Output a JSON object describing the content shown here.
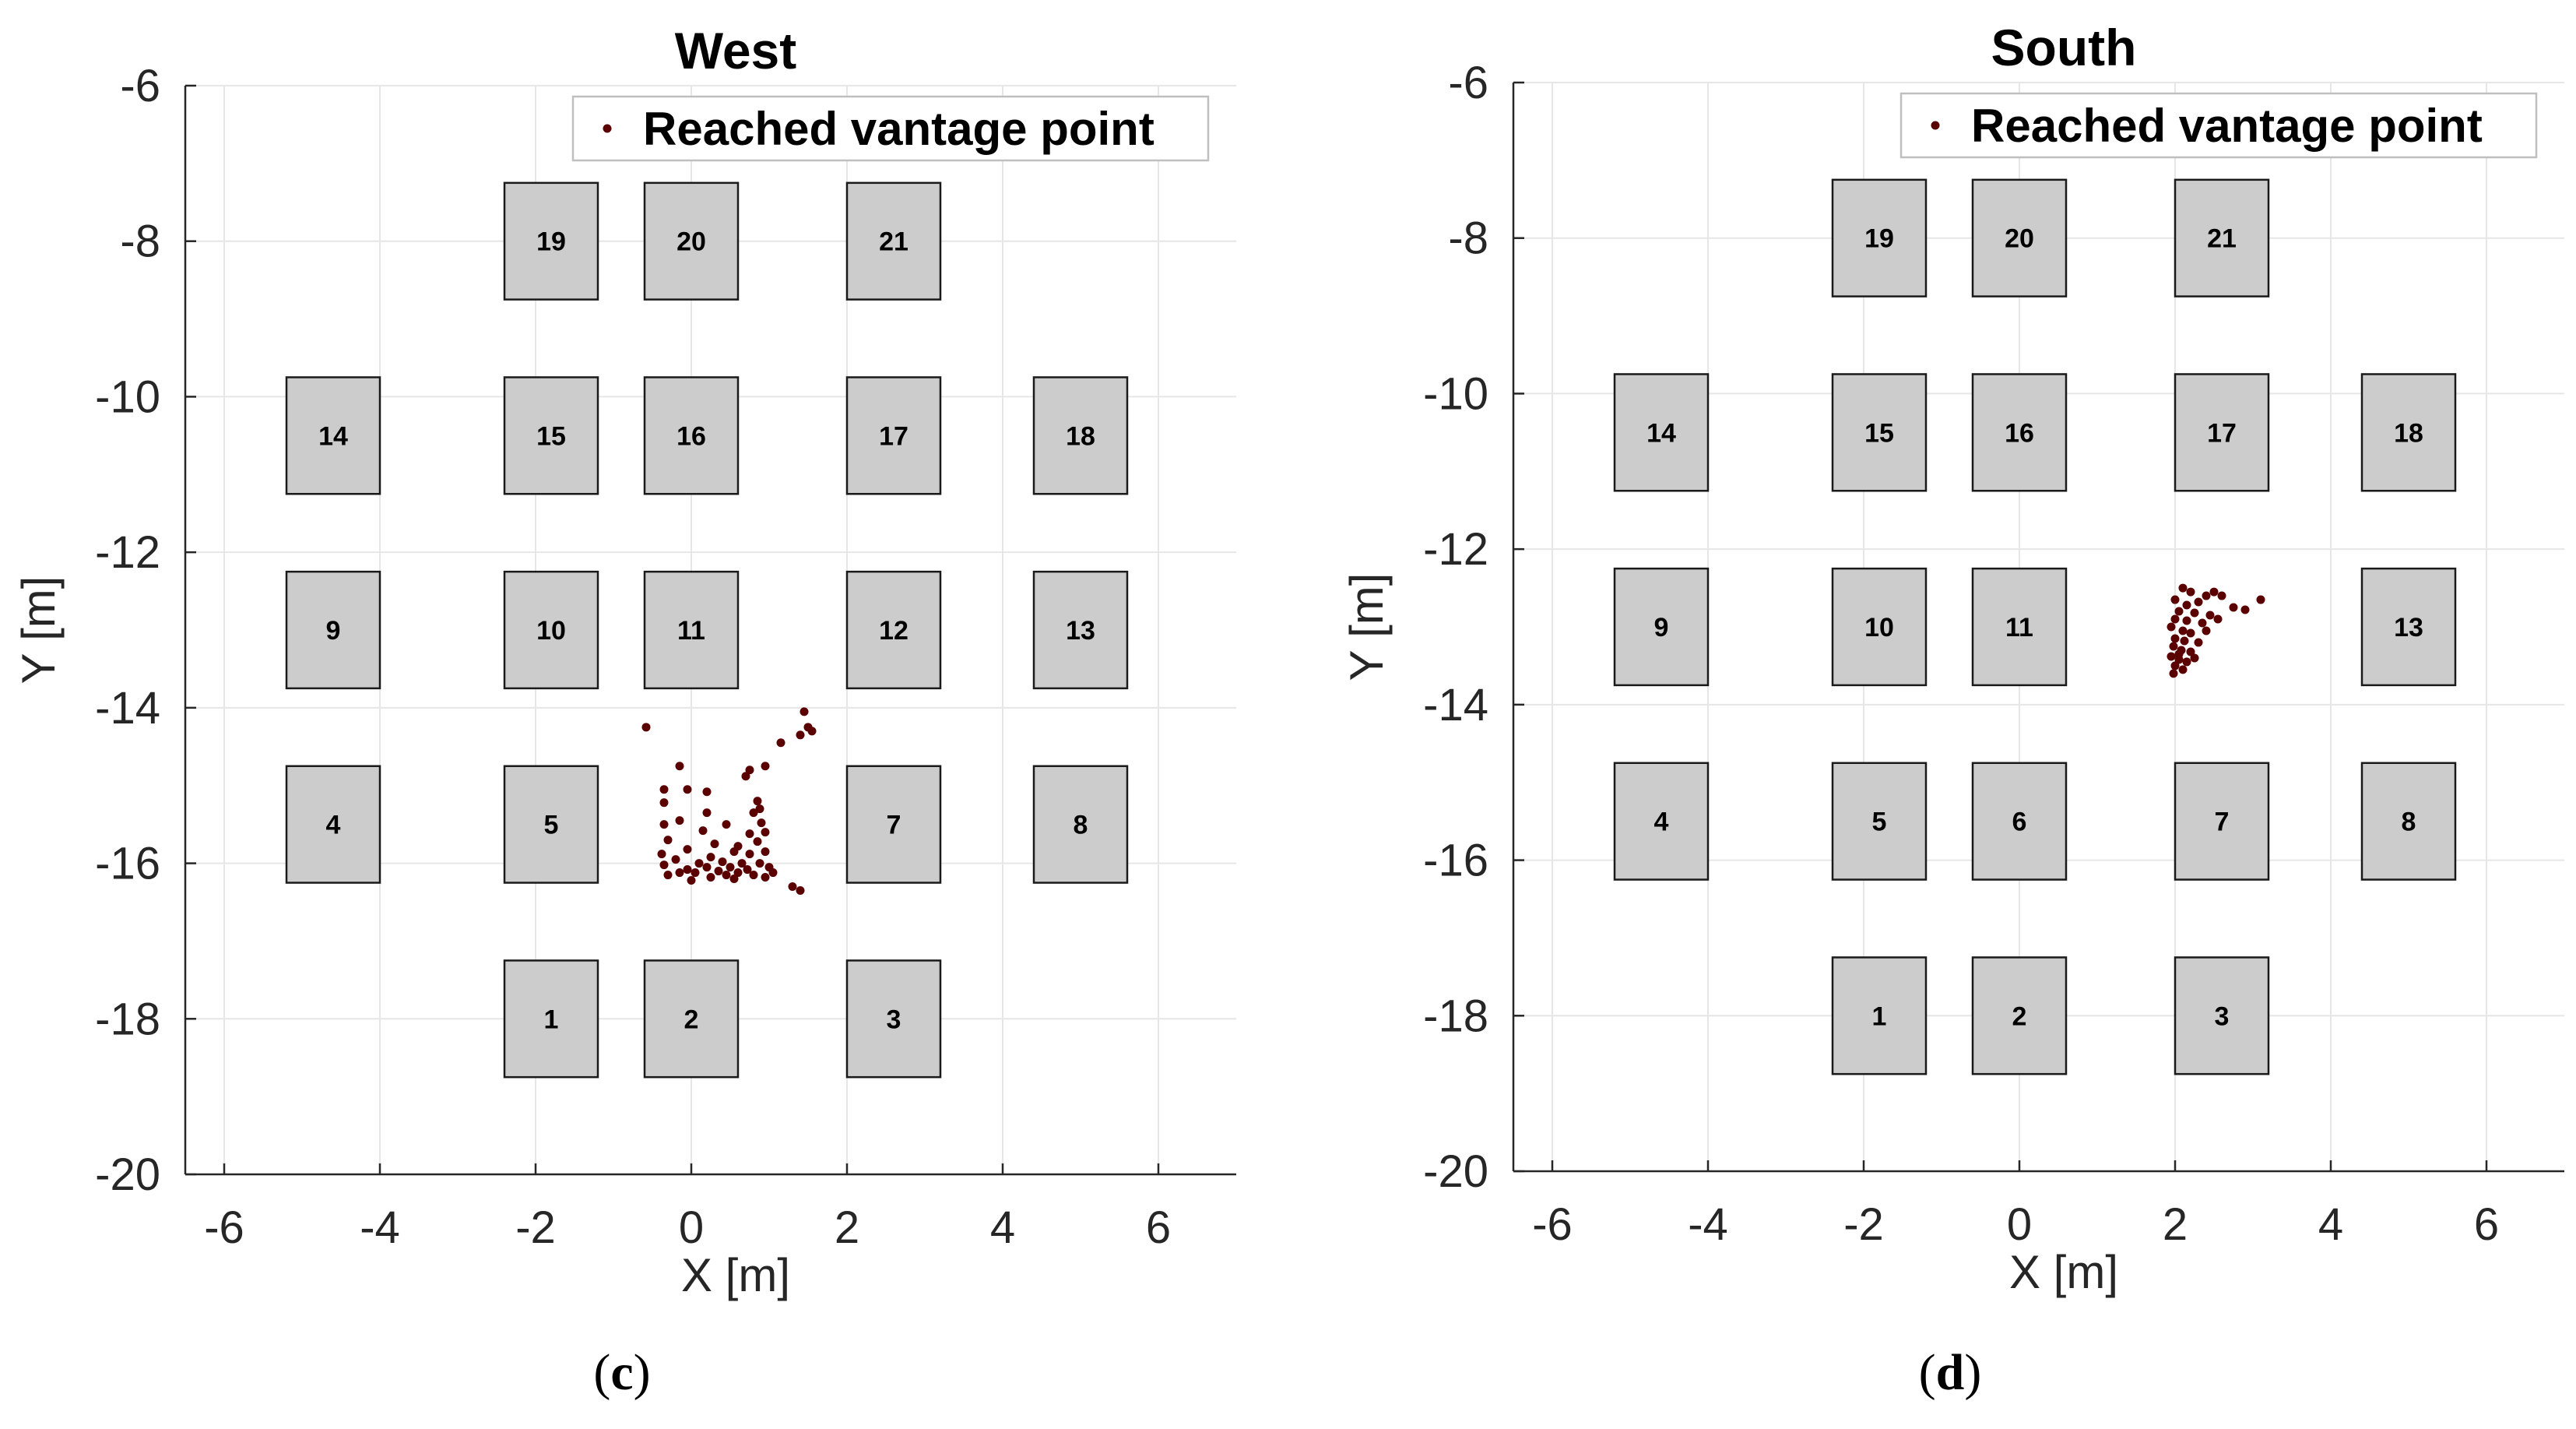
{
  "colors": {
    "background": "#ffffff",
    "axis": "#262626",
    "grid": "#e6e6e6",
    "obstacle_fill": "#cccccc",
    "obstacle_edge": "#1a1a1a",
    "point": "#5a0000",
    "text": "#000000"
  },
  "chart_data": [
    {
      "type": "scatter",
      "panel_label": "c",
      "title": "West",
      "xlabel": "X [m]",
      "ylabel": "Y [m]",
      "xlim": [
        -6.5,
        7
      ],
      "ylim": [
        -20,
        -6
      ],
      "xticks": [
        -6,
        -4,
        -2,
        0,
        2,
        4,
        6
      ],
      "yticks": [
        -6,
        -8,
        -10,
        -12,
        -14,
        -16,
        -18,
        -20
      ],
      "grid": true,
      "legend": {
        "location": "top-right",
        "entries": [
          "Reached vantage point"
        ]
      },
      "obstacles": [
        {
          "label": "1",
          "x": -2.4,
          "y": -18.75,
          "w": 1.2,
          "h": 1.5
        },
        {
          "label": "2",
          "x": -0.6,
          "y": -18.75,
          "w": 1.2,
          "h": 1.5
        },
        {
          "label": "3",
          "x": 2.0,
          "y": -18.75,
          "w": 1.2,
          "h": 1.5
        },
        {
          "label": "4",
          "x": -5.2,
          "y": -16.25,
          "w": 1.2,
          "h": 1.5
        },
        {
          "label": "5",
          "x": -2.4,
          "y": -16.25,
          "w": 1.2,
          "h": 1.5
        },
        {
          "label": "7",
          "x": 2.0,
          "y": -16.25,
          "w": 1.2,
          "h": 1.5
        },
        {
          "label": "8",
          "x": 4.4,
          "y": -16.25,
          "w": 1.2,
          "h": 1.5
        },
        {
          "label": "9",
          "x": -5.2,
          "y": -13.75,
          "w": 1.2,
          "h": 1.5
        },
        {
          "label": "10",
          "x": -2.4,
          "y": -13.75,
          "w": 1.2,
          "h": 1.5
        },
        {
          "label": "11",
          "x": -0.6,
          "y": -13.75,
          "w": 1.2,
          "h": 1.5
        },
        {
          "label": "12",
          "x": 2.0,
          "y": -13.75,
          "w": 1.2,
          "h": 1.5
        },
        {
          "label": "13",
          "x": 4.4,
          "y": -13.75,
          "w": 1.2,
          "h": 1.5
        },
        {
          "label": "14",
          "x": -5.2,
          "y": -11.25,
          "w": 1.2,
          "h": 1.5
        },
        {
          "label": "15",
          "x": -2.4,
          "y": -11.25,
          "w": 1.2,
          "h": 1.5
        },
        {
          "label": "16",
          "x": -0.6,
          "y": -11.25,
          "w": 1.2,
          "h": 1.5
        },
        {
          "label": "17",
          "x": 2.0,
          "y": -11.25,
          "w": 1.2,
          "h": 1.5
        },
        {
          "label": "18",
          "x": 4.4,
          "y": -11.25,
          "w": 1.2,
          "h": 1.5
        },
        {
          "label": "19",
          "x": -2.4,
          "y": -8.75,
          "w": 1.2,
          "h": 1.5
        },
        {
          "label": "20",
          "x": -0.6,
          "y": -8.75,
          "w": 1.2,
          "h": 1.5
        },
        {
          "label": "21",
          "x": 2.0,
          "y": -8.75,
          "w": 1.2,
          "h": 1.5
        }
      ],
      "series": [
        {
          "name": "Reached vantage point",
          "points": [
            [
              -0.58,
              -14.25
            ],
            [
              1.45,
              -14.05
            ],
            [
              1.5,
              -14.25
            ],
            [
              1.55,
              -14.3
            ],
            [
              1.4,
              -14.35
            ],
            [
              1.15,
              -14.45
            ],
            [
              0.95,
              -14.75
            ],
            [
              -0.15,
              -14.75
            ],
            [
              0.75,
              -14.8
            ],
            [
              0.7,
              -14.88
            ],
            [
              -0.35,
              -15.05
            ],
            [
              -0.05,
              -15.05
            ],
            [
              0.2,
              -15.08
            ],
            [
              0.85,
              -15.2
            ],
            [
              -0.35,
              -15.22
            ],
            [
              0.88,
              -15.3
            ],
            [
              0.2,
              -15.35
            ],
            [
              0.8,
              -15.35
            ],
            [
              -0.15,
              -15.45
            ],
            [
              -0.35,
              -15.5
            ],
            [
              0.45,
              -15.5
            ],
            [
              0.9,
              -15.48
            ],
            [
              0.15,
              -15.58
            ],
            [
              0.75,
              -15.62
            ],
            [
              0.95,
              -15.6
            ],
            [
              -0.3,
              -15.7
            ],
            [
              0.3,
              -15.75
            ],
            [
              0.85,
              -15.72
            ],
            [
              0.6,
              -15.78
            ],
            [
              -0.05,
              -15.82
            ],
            [
              -0.38,
              -15.88
            ],
            [
              0.55,
              -15.85
            ],
            [
              0.75,
              -15.88
            ],
            [
              0.95,
              -15.85
            ],
            [
              0.25,
              -15.92
            ],
            [
              -0.2,
              -15.95
            ],
            [
              0.4,
              -15.98
            ],
            [
              0.1,
              -16.0
            ],
            [
              0.65,
              -16.0
            ],
            [
              0.88,
              -16.0
            ],
            [
              -0.35,
              -16.02
            ],
            [
              0.2,
              -16.05
            ],
            [
              -0.05,
              -16.08
            ],
            [
              0.35,
              -16.1
            ],
            [
              0.5,
              -16.05
            ],
            [
              0.72,
              -16.08
            ],
            [
              1.0,
              -16.05
            ],
            [
              0.05,
              -16.12
            ],
            [
              0.45,
              -16.15
            ],
            [
              0.6,
              -16.12
            ],
            [
              0.8,
              -16.15
            ],
            [
              -0.3,
              -16.15
            ],
            [
              1.05,
              -16.12
            ],
            [
              0.25,
              -16.18
            ],
            [
              0.0,
              -16.22
            ],
            [
              0.55,
              -16.2
            ],
            [
              1.3,
              -16.3
            ],
            [
              1.4,
              -16.35
            ],
            [
              0.95,
              -16.18
            ],
            [
              -0.15,
              -16.12
            ]
          ]
        }
      ]
    },
    {
      "type": "scatter",
      "panel_label": "d",
      "title": "South",
      "xlabel": "X [m]",
      "ylabel": "Y [m]",
      "xlim": [
        -6.5,
        7
      ],
      "ylim": [
        -20,
        -6
      ],
      "xticks": [
        -6,
        -4,
        -2,
        0,
        2,
        4,
        6
      ],
      "yticks": [
        -6,
        -8,
        -10,
        -12,
        -14,
        -16,
        -18,
        -20
      ],
      "grid": true,
      "legend": {
        "location": "top-right",
        "entries": [
          "Reached vantage point"
        ]
      },
      "obstacles": [
        {
          "label": "1",
          "x": -2.4,
          "y": -18.75,
          "w": 1.2,
          "h": 1.5
        },
        {
          "label": "2",
          "x": -0.6,
          "y": -18.75,
          "w": 1.2,
          "h": 1.5
        },
        {
          "label": "3",
          "x": 2.0,
          "y": -18.75,
          "w": 1.2,
          "h": 1.5
        },
        {
          "label": "4",
          "x": -5.2,
          "y": -16.25,
          "w": 1.2,
          "h": 1.5
        },
        {
          "label": "5",
          "x": -2.4,
          "y": -16.25,
          "w": 1.2,
          "h": 1.5
        },
        {
          "label": "6",
          "x": -0.6,
          "y": -16.25,
          "w": 1.2,
          "h": 1.5
        },
        {
          "label": "7",
          "x": 2.0,
          "y": -16.25,
          "w": 1.2,
          "h": 1.5
        },
        {
          "label": "8",
          "x": 4.4,
          "y": -16.25,
          "w": 1.2,
          "h": 1.5
        },
        {
          "label": "9",
          "x": -5.2,
          "y": -13.75,
          "w": 1.2,
          "h": 1.5
        },
        {
          "label": "10",
          "x": -2.4,
          "y": -13.75,
          "w": 1.2,
          "h": 1.5
        },
        {
          "label": "11",
          "x": -0.6,
          "y": -13.75,
          "w": 1.2,
          "h": 1.5
        },
        {
          "label": "13",
          "x": 4.4,
          "y": -13.75,
          "w": 1.2,
          "h": 1.5
        },
        {
          "label": "14",
          "x": -5.2,
          "y": -11.25,
          "w": 1.2,
          "h": 1.5
        },
        {
          "label": "15",
          "x": -2.4,
          "y": -11.25,
          "w": 1.2,
          "h": 1.5
        },
        {
          "label": "16",
          "x": -0.6,
          "y": -11.25,
          "w": 1.2,
          "h": 1.5
        },
        {
          "label": "17",
          "x": 2.0,
          "y": -11.25,
          "w": 1.2,
          "h": 1.5
        },
        {
          "label": "18",
          "x": 4.4,
          "y": -11.25,
          "w": 1.2,
          "h": 1.5
        },
        {
          "label": "19",
          "x": -2.4,
          "y": -8.75,
          "w": 1.2,
          "h": 1.5
        },
        {
          "label": "20",
          "x": -0.6,
          "y": -8.75,
          "w": 1.2,
          "h": 1.5
        },
        {
          "label": "21",
          "x": 2.0,
          "y": -8.75,
          "w": 1.2,
          "h": 1.5
        }
      ],
      "series": [
        {
          "name": "Reached vantage point",
          "points": [
            [
              2.1,
              -12.5
            ],
            [
              2.2,
              -12.55
            ],
            [
              2.5,
              -12.55
            ],
            [
              2.4,
              -12.6
            ],
            [
              2.6,
              -12.6
            ],
            [
              3.1,
              -12.65
            ],
            [
              2.0,
              -12.65
            ],
            [
              2.3,
              -12.68
            ],
            [
              2.15,
              -12.72
            ],
            [
              2.75,
              -12.75
            ],
            [
              2.9,
              -12.78
            ],
            [
              2.05,
              -12.8
            ],
            [
              2.25,
              -12.82
            ],
            [
              2.45,
              -12.85
            ],
            [
              2.0,
              -12.9
            ],
            [
              2.15,
              -12.92
            ],
            [
              2.35,
              -12.95
            ],
            [
              2.55,
              -12.9
            ],
            [
              1.95,
              -13.0
            ],
            [
              2.1,
              -13.05
            ],
            [
              2.2,
              -13.08
            ],
            [
              2.4,
              -13.05
            ],
            [
              2.0,
              -13.15
            ],
            [
              2.12,
              -13.18
            ],
            [
              2.3,
              -13.2
            ],
            [
              1.98,
              -13.25
            ],
            [
              2.08,
              -13.3
            ],
            [
              2.2,
              -13.32
            ],
            [
              1.95,
              -13.38
            ],
            [
              2.05,
              -13.42
            ],
            [
              2.15,
              -13.45
            ],
            [
              2.0,
              -13.5
            ],
            [
              2.1,
              -13.55
            ],
            [
              1.98,
              -13.6
            ],
            [
              2.05,
              -13.35
            ],
            [
              2.25,
              -13.4
            ]
          ]
        }
      ]
    }
  ]
}
